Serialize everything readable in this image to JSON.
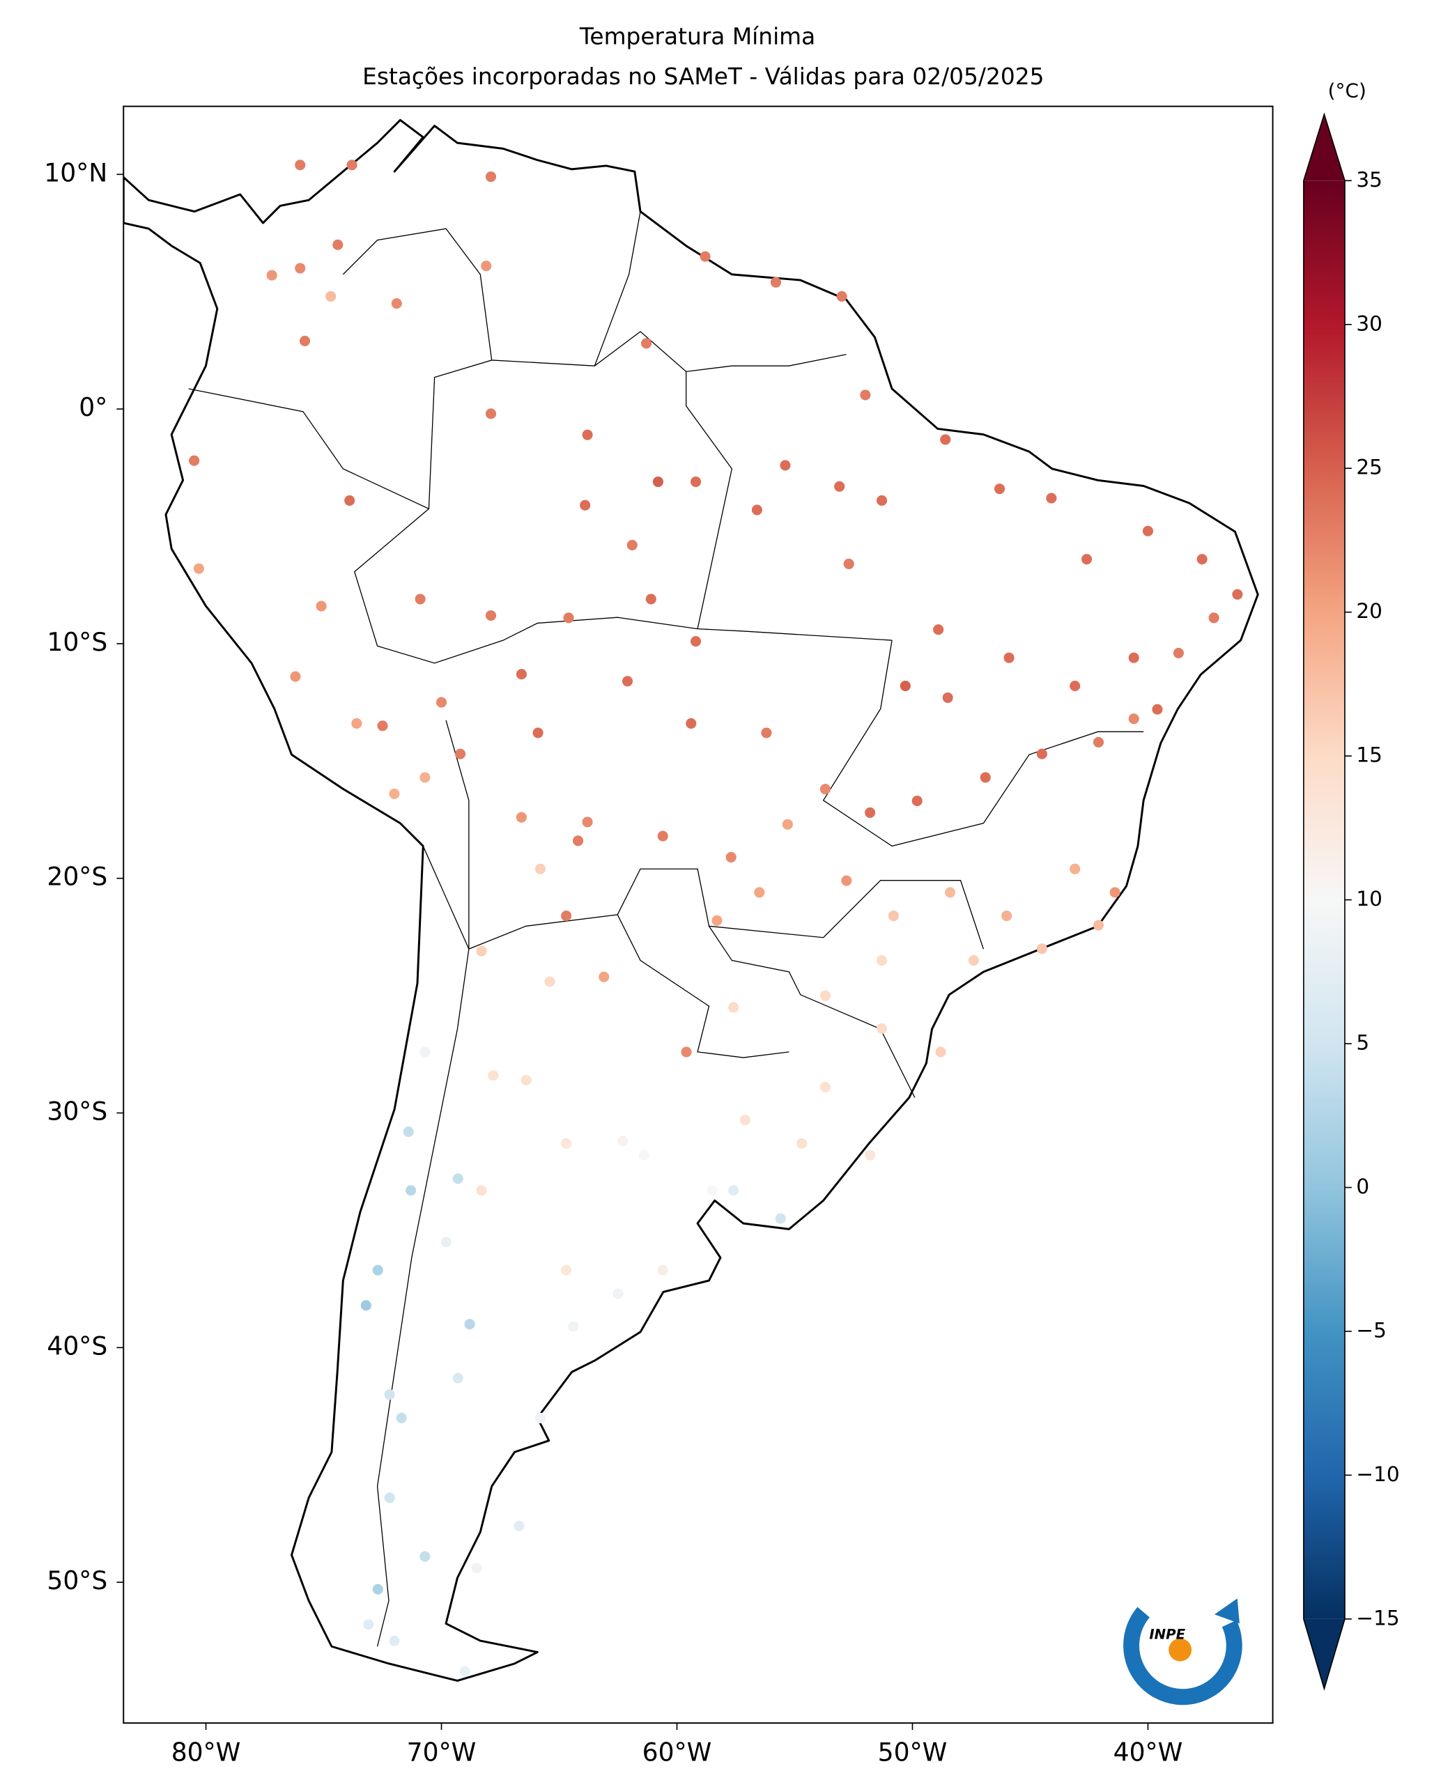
{
  "chart_data": {
    "type": "map",
    "title": "Temperatura Mínima",
    "subtitle": "Estações incorporadas no SAMeT - Válidas para 02/05/2025",
    "xlim": [
      -83.5,
      -34.7
    ],
    "ylim": [
      -56,
      12.9
    ],
    "xticks": [
      {
        "value": -80,
        "label": "80°W"
      },
      {
        "value": -70,
        "label": "70°W"
      },
      {
        "value": -60,
        "label": "60°W"
      },
      {
        "value": -50,
        "label": "50°W"
      },
      {
        "value": -40,
        "label": "40°W"
      }
    ],
    "yticks": [
      {
        "value": 10,
        "label": "10°N"
      },
      {
        "value": 0,
        "label": "0°"
      },
      {
        "value": -10,
        "label": "10°S"
      },
      {
        "value": -20,
        "label": "20°S"
      },
      {
        "value": -30,
        "label": "30°S"
      },
      {
        "value": -40,
        "label": "40°S"
      },
      {
        "value": -50,
        "label": "50°S"
      }
    ],
    "x": [
      -76.0,
      -73.8,
      -67.9,
      -74.4,
      -77.2,
      -76.0,
      -74.7,
      -75.8,
      -71.9,
      -68.1,
      -61.3,
      -58.8,
      -55.8,
      -53.0,
      -52.0,
      -67.9,
      -63.8,
      -60.8,
      -63.9,
      -59.2,
      -55.4,
      -53.1,
      -56.6,
      -73.9,
      -80.5,
      -80.3,
      -75.1,
      -70.9,
      -67.9,
      -64.6,
      -61.1,
      -61.9,
      -59.2,
      -52.7,
      -51.3,
      -48.6,
      -46.3,
      -44.1,
      -42.6,
      -40.0,
      -37.7,
      -36.2,
      -37.2,
      -38.7,
      -40.6,
      -43.1,
      -45.9,
      -48.9,
      -50.3,
      -48.5,
      -39.6,
      -40.6,
      -42.1,
      -44.5,
      -46.9,
      -49.8,
      -51.8,
      -53.7,
      -56.2,
      -59.4,
      -62.1,
      -66.6,
      -65.9,
      -69.2,
      -70.0,
      -76.2,
      -73.6,
      -72.5,
      -72.0,
      -70.7,
      -66.6,
      -63.8,
      -60.6,
      -64.2,
      -65.8,
      -64.7,
      -68.3,
      -65.4,
      -63.1,
      -57.7,
      -55.3,
      -56.5,
      -58.3,
      -52.8,
      -50.8,
      -48.4,
      -46.0,
      -43.1,
      -41.4,
      -42.1,
      -44.5,
      -47.4,
      -51.3,
      -53.7,
      -57.6,
      -59.6,
      -51.3,
      -48.8,
      -53.7,
      -57.1,
      -54.7,
      -51.8,
      -57.6,
      -55.6,
      -58.5,
      -61.4,
      -64.7,
      -67.8,
      -66.4,
      -70.7,
      -71.4,
      -71.3,
      -69.3,
      -68.3,
      -69.8,
      -64.7,
      -72.7,
      -73.2,
      -68.8,
      -64.4,
      -69.3,
      -72.2,
      -71.7,
      -65.8,
      -72.2,
      -66.7,
      -70.7,
      -68.5,
      -72.7,
      -73.1,
      -72.0,
      -69.0,
      -60.6,
      -62.5,
      -62.3
    ],
    "y": [
      10.4,
      10.4,
      9.9,
      7.0,
      5.7,
      6.0,
      4.8,
      2.9,
      4.5,
      6.1,
      2.8,
      6.5,
      5.4,
      4.8,
      0.6,
      -0.2,
      -1.1,
      -3.1,
      -4.1,
      -3.1,
      -2.4,
      -3.3,
      -4.3,
      -3.9,
      -2.2,
      -6.8,
      -8.4,
      -8.1,
      -8.8,
      -8.9,
      -8.1,
      -5.8,
      -9.9,
      -6.6,
      -3.9,
      -1.3,
      -3.4,
      -3.8,
      -6.4,
      -5.2,
      -6.4,
      -7.9,
      -8.9,
      -10.4,
      -10.6,
      -11.8,
      -10.6,
      -9.4,
      -11.8,
      -12.3,
      -12.8,
      -13.2,
      -14.2,
      -14.7,
      -15.7,
      -16.7,
      -17.2,
      -16.2,
      -13.8,
      -13.4,
      -11.6,
      -11.3,
      -13.8,
      -14.7,
      -12.5,
      -11.4,
      -13.4,
      -13.5,
      -16.4,
      -15.7,
      -17.4,
      -17.6,
      -18.2,
      -18.4,
      -19.6,
      -21.6,
      -23.1,
      -24.4,
      -24.2,
      -19.1,
      -17.7,
      -20.6,
      -21.8,
      -20.1,
      -21.6,
      -20.6,
      -21.6,
      -19.6,
      -20.6,
      -22.0,
      -23.0,
      -23.5,
      -23.5,
      -25.0,
      -25.5,
      -27.4,
      -26.4,
      -27.4,
      -28.9,
      -30.3,
      -31.3,
      -31.8,
      -33.3,
      -34.5,
      -33.3,
      -31.8,
      -31.3,
      -28.4,
      -28.6,
      -27.4,
      -30.8,
      -33.3,
      -32.8,
      -33.3,
      -35.5,
      -36.7,
      -36.7,
      -38.2,
      -39.0,
      -39.1,
      -41.3,
      -42.0,
      -43.0,
      -43.0,
      -46.4,
      -47.6,
      -48.9,
      -49.4,
      -50.3,
      -51.8,
      -52.5,
      -53.8,
      -36.7,
      -37.7,
      -31.2
    ],
    "values": [
      23,
      23,
      23,
      23,
      21,
      22,
      18,
      23,
      22,
      21,
      23,
      23,
      23,
      23,
      23,
      23,
      24,
      25,
      24,
      24,
      24,
      24,
      24,
      24,
      23,
      20,
      21,
      23,
      23,
      23,
      24,
      23,
      24,
      23,
      24,
      24,
      24,
      24,
      24,
      24,
      24,
      24,
      23,
      23,
      24,
      24,
      24,
      24,
      25,
      24,
      24,
      22,
      23,
      24,
      24,
      24,
      24,
      22,
      23,
      24,
      24,
      24,
      24,
      23,
      22,
      21,
      20,
      23,
      19,
      19,
      21,
      22,
      23,
      23,
      16,
      23,
      16,
      15,
      20,
      22,
      20,
      20,
      20,
      21,
      17,
      18,
      19,
      19,
      21,
      18,
      17,
      16,
      15,
      15,
      15,
      22,
      15,
      16,
      14,
      14,
      14,
      13,
      7,
      5,
      10,
      10,
      13,
      14,
      14,
      9,
      4,
      3,
      4,
      14,
      8,
      13,
      2,
      1,
      3,
      9,
      6,
      5,
      4,
      9,
      5,
      7,
      4,
      9,
      2,
      7,
      7,
      8,
      12,
      9,
      11
    ],
    "colorbar": {
      "label": "(°C)",
      "clim": [
        -15,
        35
      ],
      "ticks": [
        35,
        30,
        25,
        20,
        15,
        10,
        5,
        0,
        {
          "value": -5,
          "label": "−5"
        },
        {
          "value": -10,
          "label": "−10"
        },
        {
          "value": -15,
          "label": "−15"
        }
      ],
      "colormap": [
        "#053061",
        "#2166ac",
        "#4393c3",
        "#92c5de",
        "#d1e5f0",
        "#f7f7f7",
        "#fddbc7",
        "#f4a582",
        "#d6604d",
        "#b2182b",
        "#67001f"
      ]
    },
    "logo": "INPE"
  }
}
